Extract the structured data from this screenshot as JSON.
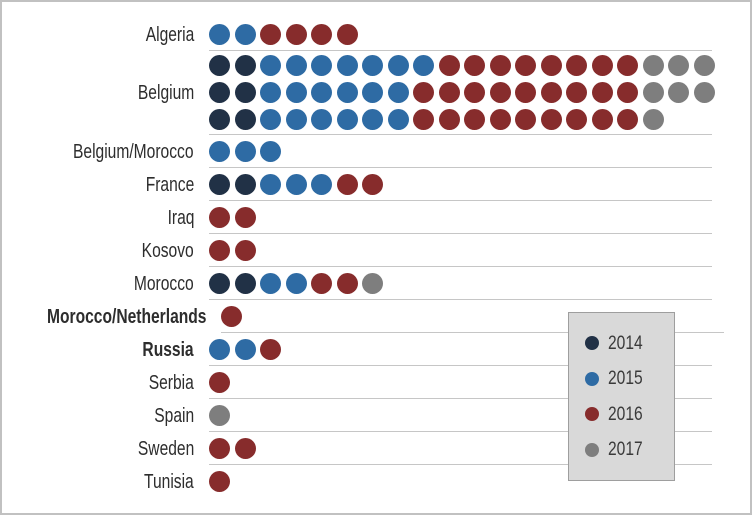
{
  "chart": {
    "years": [
      {
        "label": "2014",
        "color": "#213146"
      },
      {
        "label": "2015",
        "color": "#2e6ba4"
      },
      {
        "label": "2016",
        "color": "#872c2c"
      },
      {
        "label": "2017",
        "color": "#7e7e7e"
      }
    ],
    "colors": {
      "separator_line": "#c6c6c6",
      "legend_bg": "#d9d9d9",
      "legend_border": "#9e9e9e",
      "frame_border": "#c1c1c1",
      "label_text": "#2d2d2d"
    },
    "countries": [
      {
        "label": "Algeria",
        "bold": false,
        "rows": [
          [
            "2015",
            "2015",
            "2016",
            "2016",
            "2016",
            "2016"
          ]
        ]
      },
      {
        "label": "Belgium",
        "bold": false,
        "rows": [
          [
            "2014",
            "2014",
            "2015",
            "2015",
            "2015",
            "2015",
            "2015",
            "2015",
            "2015",
            "2016",
            "2016",
            "2016",
            "2016",
            "2016",
            "2016",
            "2016",
            "2016",
            "2017",
            "2017",
            "2017"
          ],
          [
            "2014",
            "2014",
            "2015",
            "2015",
            "2015",
            "2015",
            "2015",
            "2015",
            "2016",
            "2016",
            "2016",
            "2016",
            "2016",
            "2016",
            "2016",
            "2016",
            "2016",
            "2017",
            "2017",
            "2017"
          ],
          [
            "2014",
            "2014",
            "2015",
            "2015",
            "2015",
            "2015",
            "2015",
            "2015",
            "2016",
            "2016",
            "2016",
            "2016",
            "2016",
            "2016",
            "2016",
            "2016",
            "2016",
            "2017"
          ]
        ]
      },
      {
        "label": "Belgium/Morocco",
        "bold": false,
        "rows": [
          [
            "2015",
            "2015",
            "2015"
          ]
        ]
      },
      {
        "label": "France",
        "bold": false,
        "rows": [
          [
            "2014",
            "2014",
            "2015",
            "2015",
            "2015",
            "2016",
            "2016"
          ]
        ]
      },
      {
        "label": "Iraq",
        "bold": false,
        "rows": [
          [
            "2016",
            "2016"
          ]
        ]
      },
      {
        "label": "Kosovo",
        "bold": false,
        "rows": [
          [
            "2016",
            "2016"
          ]
        ]
      },
      {
        "label": "Morocco",
        "bold": false,
        "rows": [
          [
            "2014",
            "2014",
            "2015",
            "2015",
            "2016",
            "2016",
            "2017"
          ]
        ]
      },
      {
        "label": "Morocco/Netherlands",
        "bold": true,
        "rows": [
          [
            "2016"
          ]
        ]
      },
      {
        "label": "Russia",
        "bold": true,
        "rows": [
          [
            "2015",
            "2015",
            "2016"
          ]
        ]
      },
      {
        "label": "Serbia",
        "bold": false,
        "rows": [
          [
            "2016"
          ]
        ]
      },
      {
        "label": "Spain",
        "bold": false,
        "rows": [
          [
            "2017"
          ]
        ]
      },
      {
        "label": "Sweden",
        "bold": false,
        "rows": [
          [
            "2016",
            "2016"
          ]
        ]
      },
      {
        "label": "Tunisia",
        "bold": false,
        "rows": [
          [
            "2016"
          ]
        ]
      }
    ]
  },
  "legend": {
    "items": [
      {
        "label": "2014",
        "color": "#213146"
      },
      {
        "label": "2015",
        "color": "#2e6ba4"
      },
      {
        "label": "2016",
        "color": "#872c2c"
      },
      {
        "label": "2017",
        "color": "#7e7e7e"
      }
    ],
    "position": "bottom-right"
  },
  "chart_data": {
    "type": "dot",
    "title": "",
    "categories": [
      "Algeria",
      "Belgium",
      "Belgium/Morocco",
      "France",
      "Iraq",
      "Kosovo",
      "Morocco",
      "Morocco/Netherlands",
      "Russia",
      "Serbia",
      "Spain",
      "Sweden",
      "Tunisia"
    ],
    "series": [
      {
        "name": "2014",
        "color": "#213146",
        "values": [
          0,
          6,
          0,
          2,
          0,
          0,
          2,
          0,
          0,
          0,
          0,
          0,
          0
        ]
      },
      {
        "name": "2015",
        "color": "#2e6ba4",
        "values": [
          2,
          19,
          3,
          3,
          0,
          0,
          2,
          0,
          2,
          0,
          0,
          0,
          0
        ]
      },
      {
        "name": "2016",
        "color": "#872c2c",
        "values": [
          4,
          26,
          0,
          2,
          2,
          2,
          2,
          1,
          1,
          1,
          0,
          2,
          1
        ]
      },
      {
        "name": "2017",
        "color": "#7e7e7e",
        "values": [
          0,
          7,
          0,
          0,
          0,
          0,
          1,
          0,
          0,
          0,
          1,
          0,
          0
        ]
      }
    ],
    "notes": "Each dot = 1 unit; Belgium wraps onto 3 dot rows (20 + 20 + 18 dots). Dots in each row are ordered by year: 2014 navy, 2015 blue, 2016 dark red, 2017 gray.",
    "grid": "horizontal category separator lines",
    "legend_position": "bottom-right overlay box"
  }
}
